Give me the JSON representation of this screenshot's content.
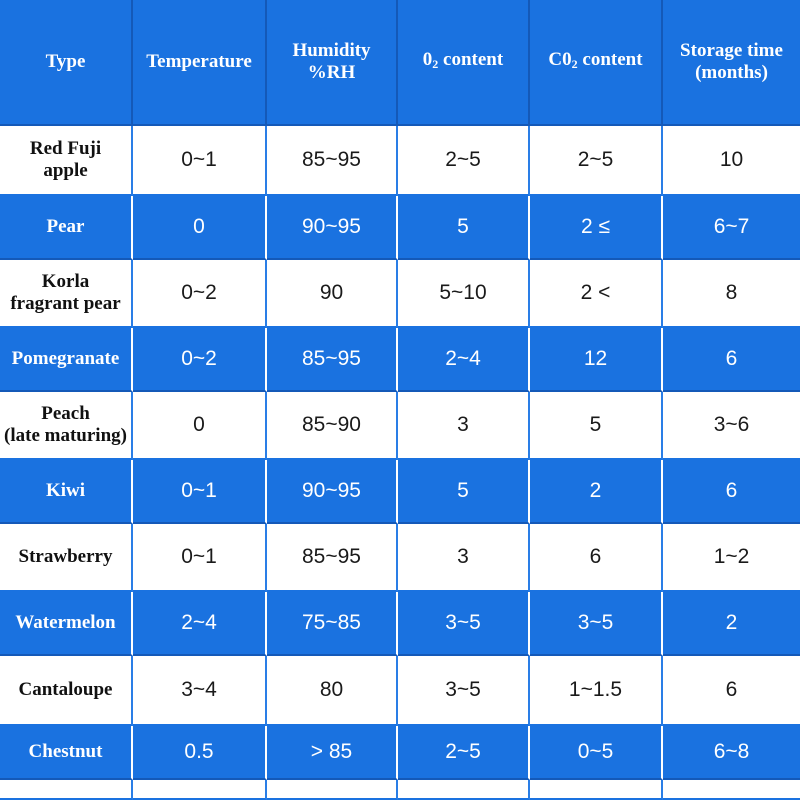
{
  "headers": {
    "type": "Type",
    "temperature": "Temperature",
    "humidity_line1": "Humidity",
    "humidity_line2": "%RH",
    "o2_prefix": "0",
    "o2_sub": "2",
    "o2_suffix": " content",
    "co2_prefix": "C0",
    "co2_sub": "2",
    "co2_suffix": " content",
    "storage_line1": "Storage time",
    "storage_line2": "(months)"
  },
  "rows": [
    {
      "type_l1": "Red Fuji",
      "type_l2": "apple",
      "temperature": "0~1",
      "humidity": "85~95",
      "o2": "2~5",
      "co2": "2~5",
      "storage": "10"
    },
    {
      "type_l1": "Pear",
      "type_l2": "",
      "temperature": "0",
      "humidity": "90~95",
      "o2": "5",
      "co2": "2 ≤",
      "storage": "6~7"
    },
    {
      "type_l1": "Korla",
      "type_l2": "fragrant pear",
      "temperature": "0~2",
      "humidity": "90",
      "o2": "5~10",
      "co2": "2 <",
      "storage": "8"
    },
    {
      "type_l1": "Pomegranate",
      "type_l2": "",
      "temperature": "0~2",
      "humidity": "85~95",
      "o2": "2~4",
      "co2": "12",
      "storage": "6"
    },
    {
      "type_l1": "Peach",
      "type_l2": "(late maturing)",
      "temperature": "0",
      "humidity": "85~90",
      "o2": "3",
      "co2": "5",
      "storage": "3~6"
    },
    {
      "type_l1": "Kiwi",
      "type_l2": "",
      "temperature": "0~1",
      "humidity": "90~95",
      "o2": "5",
      "co2": "2",
      "storage": "6"
    },
    {
      "type_l1": "Strawberry",
      "type_l2": "",
      "temperature": "0~1",
      "humidity": "85~95",
      "o2": "3",
      "co2": "6",
      "storage": "1~2"
    },
    {
      "type_l1": "Watermelon",
      "type_l2": "",
      "temperature": "2~4",
      "humidity": "75~85",
      "o2": "3~5",
      "co2": "3~5",
      "storage": "2"
    },
    {
      "type_l1": "Cantaloupe",
      "type_l2": "",
      "temperature": "3~4",
      "humidity": "80",
      "o2": "3~5",
      "co2": "1~1.5",
      "storage": "6"
    },
    {
      "type_l1": "Chestnut",
      "type_l2": "",
      "temperature": "0.5",
      "humidity": "> 85",
      "o2": "2~5",
      "co2": "0~5",
      "storage": "6~8"
    }
  ],
  "colors": {
    "header_blue": "#1a72e0",
    "row_white": "#ffffff",
    "row_blue": "#1a72e0"
  }
}
